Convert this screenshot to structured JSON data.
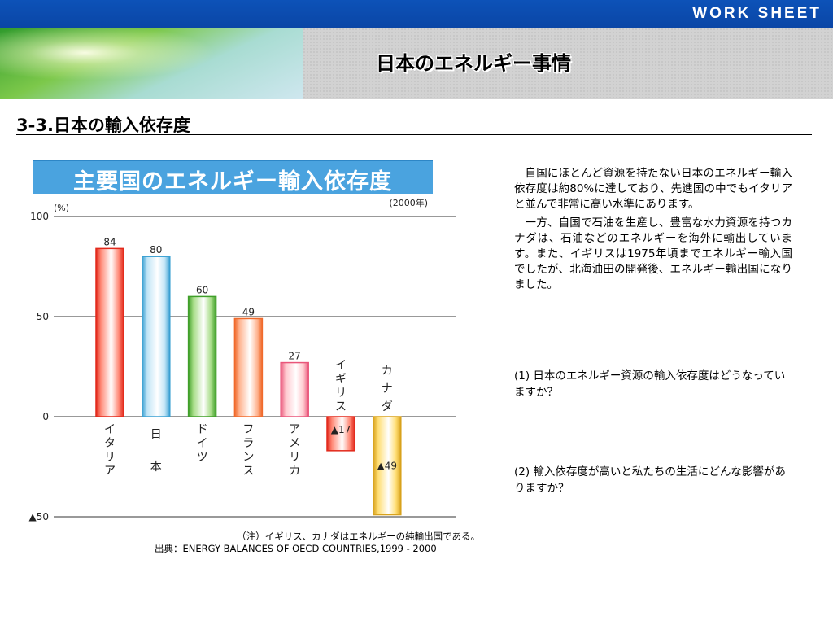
{
  "header": {
    "worksheet_label": "WORK SHEET",
    "title": "日本のエネルギー事情"
  },
  "section": {
    "heading": "3-3.日本の輸入依存度"
  },
  "colors": {
    "top_bar": "#0d52b8",
    "chart_title_bg": "#4aa3df"
  },
  "chart_data": {
    "type": "bar",
    "title": "主要国のエネルギー輸入依存度",
    "unit_label": "(%)",
    "year_label": "(2000年)",
    "yticks": [
      {
        "value": 100,
        "label": "100"
      },
      {
        "value": 50,
        "label": "50"
      },
      {
        "value": 0,
        "label": "0"
      },
      {
        "value": -50,
        "label": "▲50"
      }
    ],
    "ylim": [
      -50,
      100
    ],
    "grid": true,
    "categories": [
      "イタリア",
      "日本",
      "ドイツ",
      "フランス",
      "アメリカ",
      "イギリス",
      "カナダ"
    ],
    "values": [
      84,
      80,
      60,
      49,
      27,
      -17,
      -49
    ],
    "value_labels": [
      "84",
      "80",
      "60",
      "49",
      "27",
      "▲17",
      "▲49"
    ],
    "bar_colors": [
      {
        "fill": "#ff8a78",
        "edge": "#e2291b"
      },
      {
        "fill": "#bfe4f6",
        "edge": "#3aa0d2"
      },
      {
        "fill": "#a6dc86",
        "edge": "#3f9f29"
      },
      {
        "fill": "#ffb592",
        "edge": "#f06a2c"
      },
      {
        "fill": "#ffc7cd",
        "edge": "#e9557a"
      },
      {
        "fill": "#ff8a78",
        "edge": "#e2291b"
      },
      {
        "fill": "#ffde74",
        "edge": "#d8a21c"
      }
    ]
  },
  "chart_notes": {
    "note": "（注）イギリス、カナダはエネルギーの純輸出国である。",
    "source": "出典：ENERGY BALANCES OF OECD COUNTRIES,1999 - 2000"
  },
  "body_text": {
    "paragraph1": "自国にほとんど資源を持たない日本のエネルギー輸入依存度は約80%に達しており、先進国の中でもイタリアと並んで非常に高い水準にあります。",
    "paragraph2": "一方、自国で石油を生産し、豊富な水力資源を持つカナダは、石油などのエネルギーを海外に輸出しています。また、イギリスは1975年頃までエネルギー輸入国でしたが、北海油田の開発後、エネルギー輸出国になりました。"
  },
  "questions": {
    "q1": "(1) 日本のエネルギー資源の輸入依存度はどうなっていますか？",
    "q2": "(2)  輸入依存度が高いと私たちの生活にどんな影響がありますか？"
  }
}
